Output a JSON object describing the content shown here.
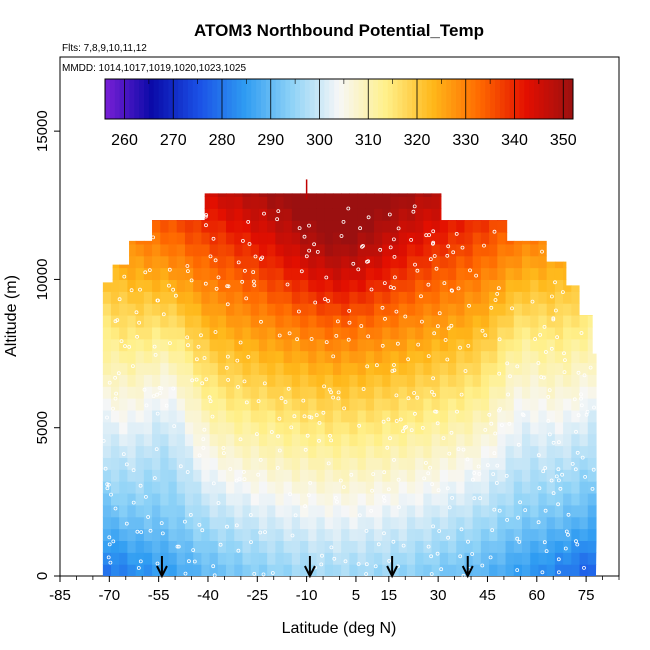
{
  "chart_data": {
    "type": "heatmap",
    "title": "ATOM3 Northbound Potential_Temp",
    "subtitle_flights": "Flts: 7,8,9,10,11,12",
    "subtitle_dates": "MMDD: 1014,1017,1019,1020,1023,1025",
    "xlabel": "Latitude (deg N)",
    "ylabel": "Altitude (m)",
    "xlim": [
      -85,
      85
    ],
    "ylim": [
      0,
      17500
    ],
    "x_ticks": [
      -85,
      -70,
      -55,
      -40,
      -25,
      -10,
      5,
      15,
      30,
      45,
      60,
      75
    ],
    "y_ticks": [
      0,
      5000,
      10000,
      15000
    ],
    "colorbar": {
      "ticks": [
        260,
        270,
        280,
        290,
        300,
        310,
        320,
        330,
        340,
        350
      ],
      "range": [
        256,
        352
      ],
      "colors": [
        "#7a1fd6",
        "#0a0aa8",
        "#1a50e6",
        "#2f9cf2",
        "#8fd3f7",
        "#f7f7f7",
        "#fff08a",
        "#ffb81a",
        "#ff6a00",
        "#e30f00",
        "#9b1010"
      ]
    },
    "arrow_latitudes": [
      -54,
      -9,
      16,
      39
    ],
    "data_extent": {
      "lat_min": -72,
      "lat_max": 78,
      "alt_max": 12900
    },
    "field_description": "Potential temperature (K) rising with altitude; warmest near the equatorial upper troposphere, coolest near the surface at high southern and northern latitudes."
  }
}
